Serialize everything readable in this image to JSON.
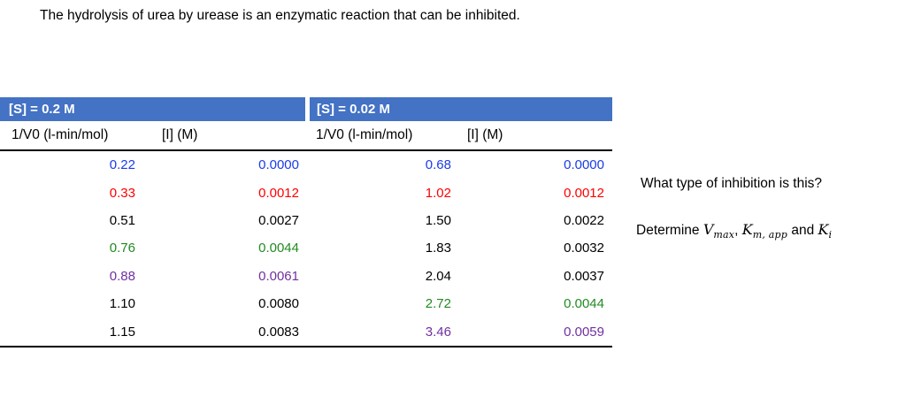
{
  "title": "The hydrolysis of urea by urease is an enzymatic reaction that can be inhibited.",
  "colors": {
    "header_bg": "#4472C4",
    "blue": "#1c3be8",
    "red": "#fe0000",
    "green": "#228b22",
    "purple": "#7030a0"
  },
  "tables": [
    {
      "header": "[S] = 0.2 M",
      "col1_label": "1/V0 (l-min/mol)",
      "col2_label": "[I] (M)",
      "rows": [
        {
          "v": "0.22",
          "i": "0.0000",
          "color": "blue"
        },
        {
          "v": "0.33",
          "i": "0.0012",
          "color": "red"
        },
        {
          "v": "0.51",
          "i": "0.0027",
          "color": "black"
        },
        {
          "v": "0.76",
          "i": "0.0044",
          "color": "green"
        },
        {
          "v": "0.88",
          "i": "0.0061",
          "color": "purple"
        },
        {
          "v": "1.10",
          "i": "0.0080",
          "color": "black"
        },
        {
          "v": "1.15",
          "i": "0.0083",
          "color": "black"
        }
      ]
    },
    {
      "header": "[S] = 0.02 M",
      "col1_label": "1/V0 (l-min/mol)",
      "col2_label": "[I] (M)",
      "rows": [
        {
          "v": "0.68",
          "i": "0.0000",
          "color": "blue"
        },
        {
          "v": "1.02",
          "i": "0.0012",
          "color": "red"
        },
        {
          "v": "1.50",
          "i": "0.0022",
          "color": "black"
        },
        {
          "v": "1.83",
          "i": "0.0032",
          "color": "black"
        },
        {
          "v": "2.04",
          "i": "0.0037",
          "color": "black"
        },
        {
          "v": "2.72",
          "i": "0.0044",
          "color": "green"
        },
        {
          "v": "3.46",
          "i": "0.0059",
          "color": "purple"
        }
      ]
    }
  ],
  "questions": {
    "q1": "What type of inhibition is this?",
    "determine": {
      "prefix": "Determine ",
      "vmax_base": "V",
      "vmax_sub": "max",
      "comma": ", ",
      "km_base": "K",
      "km_sub": "m, app",
      "and": " and ",
      "ki_base": "K",
      "ki_sub": "i"
    }
  }
}
